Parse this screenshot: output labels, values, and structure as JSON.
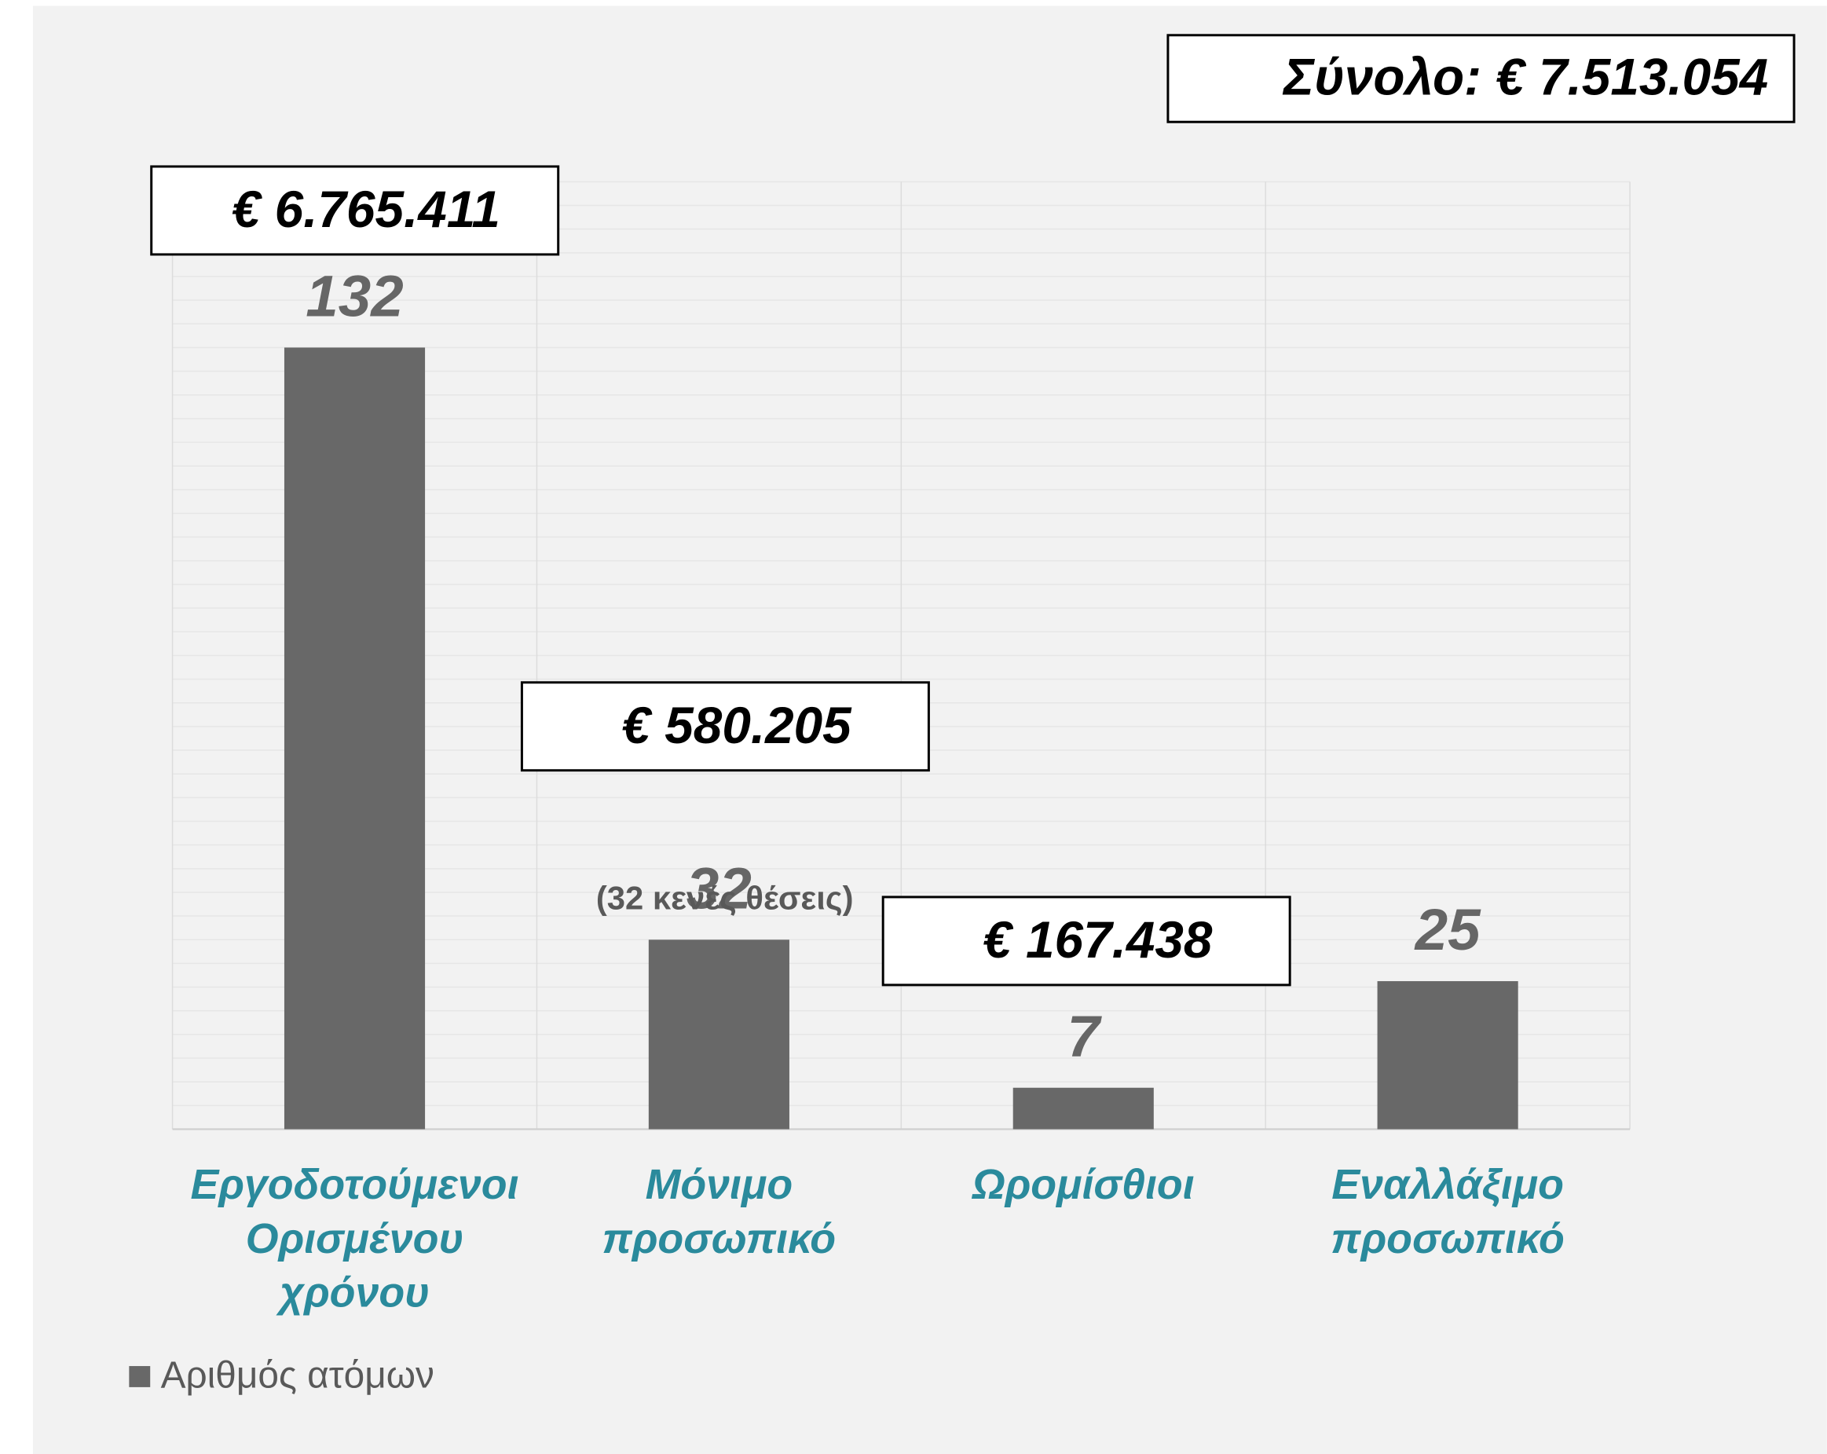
{
  "chart_data": {
    "type": "bar",
    "categories": [
      [
        "Εργοδοτούμενοι",
        "Ορισμένου",
        "χρόνου"
      ],
      [
        "Μόνιμο",
        "προσωπικό"
      ],
      [
        "Ωρομίσθιοι"
      ],
      [
        "Εναλλάξιμο",
        "προσωπικό"
      ]
    ],
    "series": [
      {
        "name": "Αριθμός ατόμων",
        "color": "#686868",
        "values": [
          132,
          32,
          7,
          25
        ]
      }
    ],
    "ylim": [
      0,
      160
    ],
    "yticks": [
      0,
      4,
      8,
      12,
      16,
      20,
      24,
      28,
      32,
      36,
      40,
      44,
      48,
      52,
      56,
      60,
      64,
      68,
      72,
      76,
      80,
      84,
      88,
      92,
      96,
      100,
      104,
      108,
      112,
      116,
      120,
      124,
      128,
      132,
      136,
      140,
      144,
      148,
      152,
      156,
      160
    ],
    "show_ytick_labels": false,
    "grid": true,
    "annotations": [
      "€ 6.765.411",
      "€ 580.205",
      "€ 167.438"
    ],
    "note": "(32 κενές θέσεις)",
    "total_label": "Σύνολο: € 7.513.054",
    "legend": "bottom-left"
  }
}
